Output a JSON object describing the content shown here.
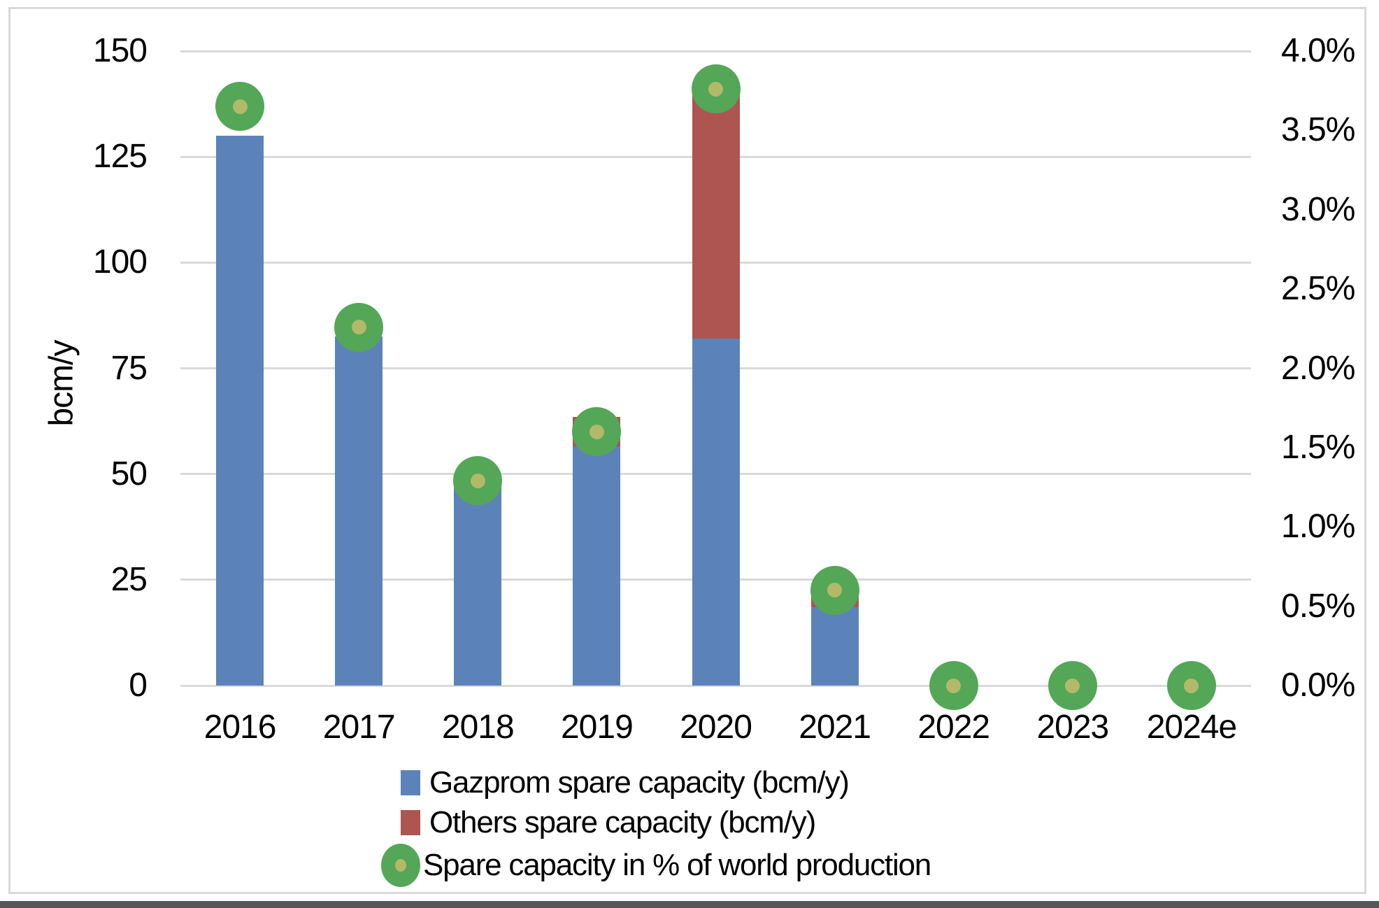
{
  "colors": {
    "gazprom_blue": "#5b83b9",
    "others_red": "#ae5551",
    "marker_green": "#53a757",
    "marker_inner": "#b2ba69",
    "gridline": "#d9d9d9",
    "frame_border": "#d9d9d9",
    "bottom_edge": "#55575a",
    "text": "#000000"
  },
  "chart_data": {
    "type": "bar",
    "subtype": "stacked-columns-with-percent-markers",
    "title": "",
    "categories": [
      "2016",
      "2017",
      "2018",
      "2019",
      "2020",
      "2021",
      "2022",
      "2023",
      "2024e"
    ],
    "series": [
      {
        "name": "Gazprom spare capacity (bcm/y)",
        "type": "bar",
        "axis": "left",
        "color": "#5b83b9",
        "values": [
          130,
          82.5,
          49.5,
          56.5,
          82,
          18.5,
          0,
          0,
          0
        ]
      },
      {
        "name": "Others spare capacity (bcm/y)",
        "type": "bar",
        "axis": "left",
        "color": "#ae5551",
        "values": [
          0,
          0,
          0,
          7,
          58.5,
          2.5,
          0,
          0,
          0
        ]
      },
      {
        "name": "Spare capacity in % of world production",
        "type": "scatter",
        "axis": "right",
        "color": "#53a757",
        "values": [
          3.65,
          2.26,
          1.29,
          1.6,
          3.76,
          0.6,
          0,
          0,
          0
        ]
      }
    ],
    "left_axis": {
      "label": "bcm/y",
      "min": 0,
      "max": 150,
      "step": 25,
      "ticks": [
        "0",
        "25",
        "50",
        "75",
        "100",
        "125",
        "150"
      ]
    },
    "right_axis": {
      "label": "",
      "min": 0,
      "max": 4,
      "step": 0.5,
      "ticks": [
        "0.0%",
        "0.5%",
        "1.0%",
        "1.5%",
        "2.0%",
        "2.5%",
        "3.0%",
        "3.5%",
        "4.0%"
      ]
    },
    "grid": "horizontal",
    "legend_position": "bottom"
  }
}
